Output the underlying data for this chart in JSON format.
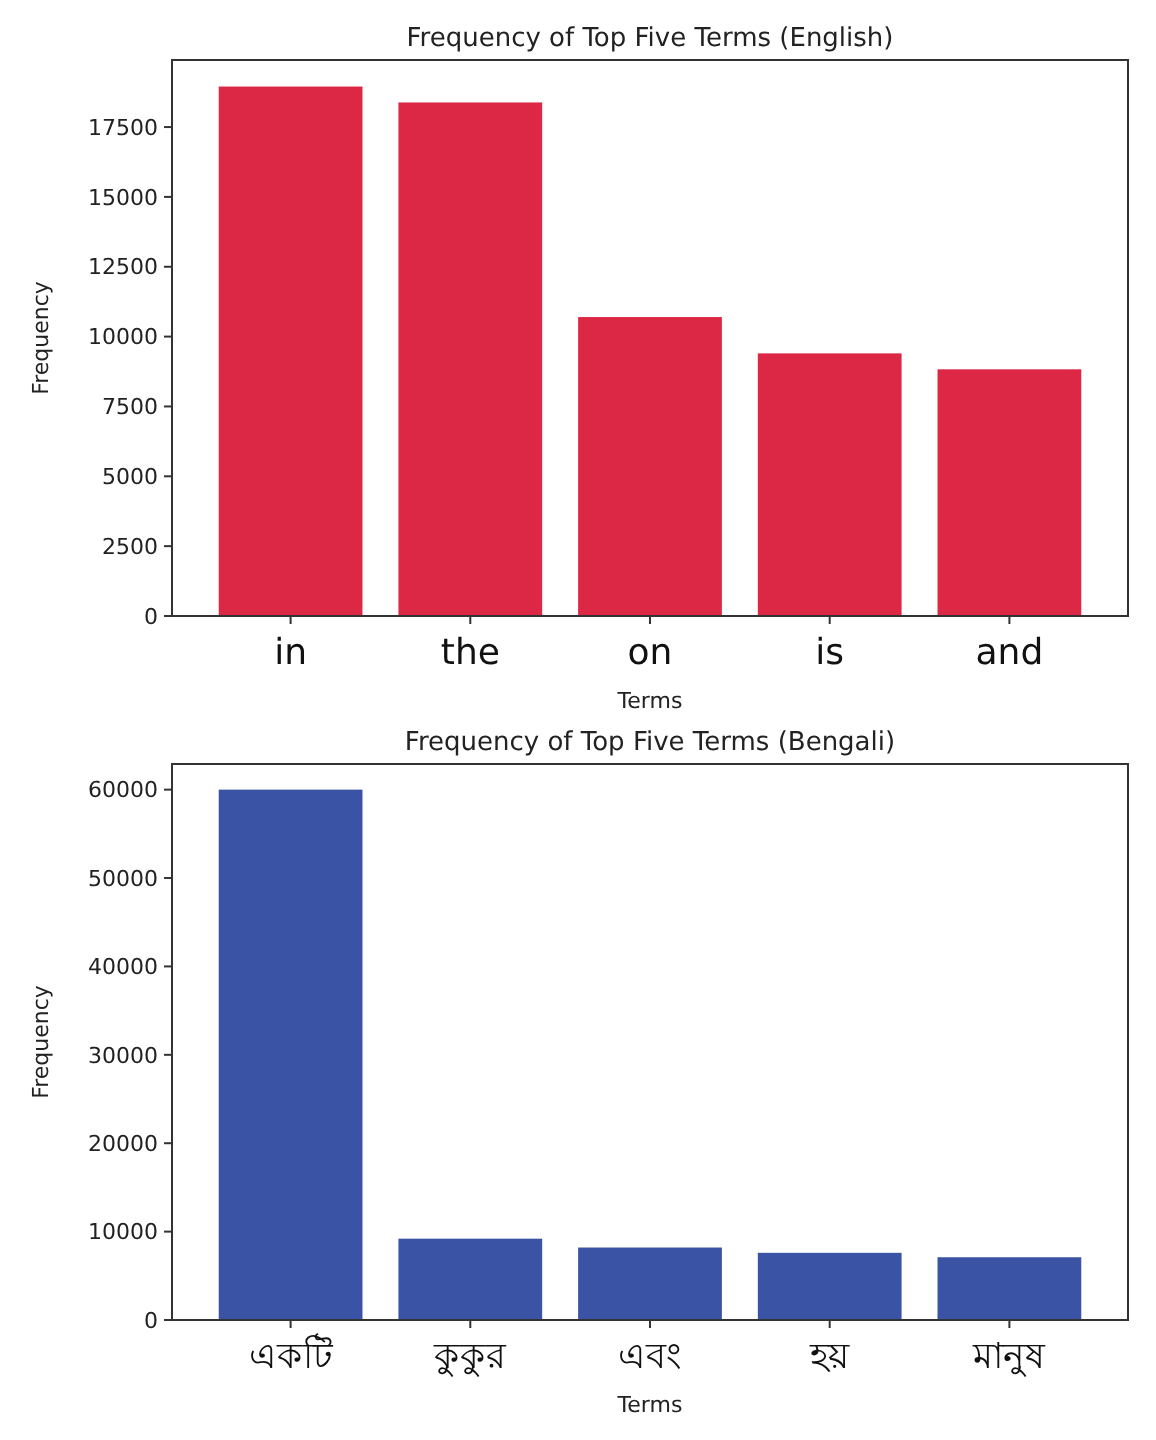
{
  "chart_data": [
    {
      "type": "bar",
      "title": "Frequency of Top Five Terms (English)",
      "xlabel": "Terms",
      "ylabel": "Frequency",
      "categories": [
        "in",
        "the",
        "on",
        "is",
        "and"
      ],
      "values": [
        18950,
        18380,
        10700,
        9400,
        8830
      ],
      "color": "#dc2845",
      "ylim": [
        0,
        19900
      ],
      "yticks": [
        0,
        2500,
        5000,
        7500,
        10000,
        12500,
        15000,
        17500
      ],
      "grid": false
    },
    {
      "type": "bar",
      "title": "Frequency of Top Five Terms (Bengali)",
      "xlabel": "Terms",
      "ylabel": "Frequency",
      "categories": [
        "একটি",
        "কুকুর",
        "এবং",
        "হয়",
        "মানুষ"
      ],
      "values": [
        60000,
        9200,
        8200,
        7600,
        7100
      ],
      "color": "#3a53a4",
      "ylim": [
        0,
        62900
      ],
      "yticks": [
        0,
        10000,
        20000,
        30000,
        40000,
        50000,
        60000
      ],
      "grid": false
    }
  ]
}
